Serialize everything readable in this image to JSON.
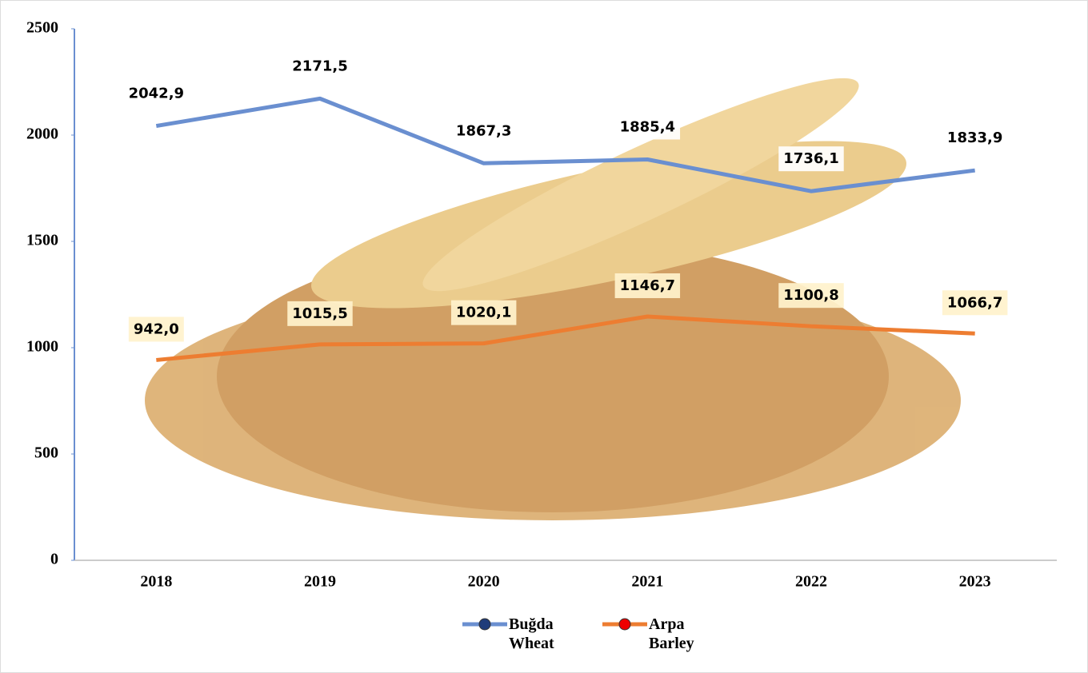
{
  "chart_data": {
    "type": "line",
    "categories": [
      "2018",
      "2019",
      "2020",
      "2021",
      "2022",
      "2023"
    ],
    "series": [
      {
        "name": "Buğda Wheat",
        "color": "#6a8fd0",
        "values": [
          2042.9,
          2171.5,
          1867.3,
          1885.4,
          1736.1,
          1833.9
        ],
        "value_labels": [
          "2042,9",
          "2171,5",
          "1867,3",
          "1885,4",
          "1736,1",
          "1833,9"
        ]
      },
      {
        "name": "Arpa Barley",
        "color": "#ed7d31",
        "values": [
          942.0,
          1015.5,
          1020.1,
          1146.7,
          1100.8,
          1066.7
        ],
        "value_labels": [
          "942,0",
          "1015,5",
          "1020,1",
          "1146,7",
          "1100,8",
          "1066,7"
        ]
      }
    ],
    "ylim": [
      0,
      2500
    ],
    "yticks": [
      0,
      500,
      1000,
      1500,
      2000,
      2500
    ],
    "grid": false,
    "legend": "bottom"
  }
}
